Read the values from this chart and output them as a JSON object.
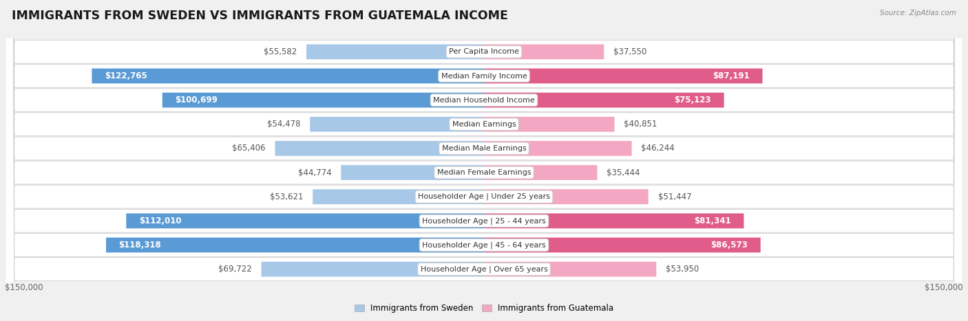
{
  "title": "IMMIGRANTS FROM SWEDEN VS IMMIGRANTS FROM GUATEMALA INCOME",
  "source": "Source: ZipAtlas.com",
  "categories": [
    "Per Capita Income",
    "Median Family Income",
    "Median Household Income",
    "Median Earnings",
    "Median Male Earnings",
    "Median Female Earnings",
    "Householder Age | Under 25 years",
    "Householder Age | 25 - 44 years",
    "Householder Age | 45 - 64 years",
    "Householder Age | Over 65 years"
  ],
  "sweden_values": [
    55582,
    122765,
    100699,
    54478,
    65406,
    44774,
    53621,
    112010,
    118318,
    69722
  ],
  "guatemala_values": [
    37550,
    87191,
    75123,
    40851,
    46244,
    35444,
    51447,
    81341,
    86573,
    53950
  ],
  "sweden_labels": [
    "$55,582",
    "$122,765",
    "$100,699",
    "$54,478",
    "$65,406",
    "$44,774",
    "$53,621",
    "$112,010",
    "$118,318",
    "$69,722"
  ],
  "guatemala_labels": [
    "$37,550",
    "$87,191",
    "$75,123",
    "$40,851",
    "$46,244",
    "$35,444",
    "$51,447",
    "$81,341",
    "$86,573",
    "$53,950"
  ],
  "sweden_color_light": "#a8c8e8",
  "sweden_color_dark": "#5b9bd5",
  "guatemala_color_light": "#f4a7c3",
  "guatemala_color_dark": "#e05c8a",
  "max_value": 150000,
  "x_label_left": "$150,000",
  "x_label_right": "$150,000",
  "background_color": "#f0f0f0",
  "row_bg_color": "#ffffff",
  "title_fontsize": 12.5,
  "label_fontsize": 8.5,
  "category_fontsize": 8,
  "legend_fontsize": 8.5,
  "inside_label_threshold": 70000,
  "legend_sweden": "Immigrants from Sweden",
  "legend_guatemala": "Immigrants from Guatemala"
}
